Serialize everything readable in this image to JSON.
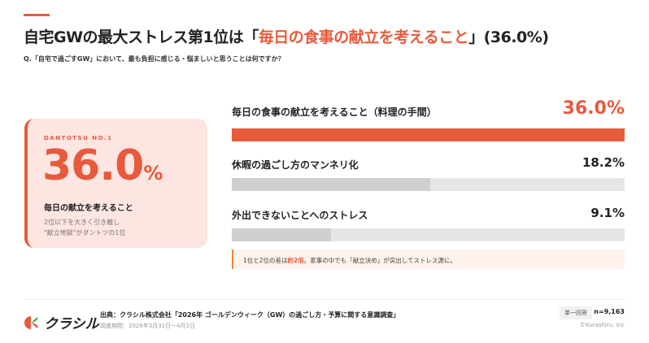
{
  "header": {
    "title_prefix": "自宅GWの最大ストレス第1位は「",
    "title_highlight": "毎日の食事の献立を考えること",
    "title_suffix": "」(36.0%)",
    "question": "Q.「自宅で過ごすGW」において、最も負担に感じる・悩ましいと思うことは何ですか？"
  },
  "card": {
    "tag": "DANTOTSU NO.1",
    "value": "36.0",
    "unit": "%",
    "label": "毎日の献立を考えること",
    "sub_line1": "2位以下を大きく引き離し",
    "sub_line2": "\"献立地獄\"がダントツの1位"
  },
  "chart_data": {
    "type": "bar",
    "orientation": "horizontal",
    "categories": [
      "毎日の食事の献立を考えること（料理の手間）",
      "休暇の過ごし方のマンネリ化",
      "外出できないことへのストレス"
    ],
    "values": [
      36.0,
      18.2,
      9.1
    ],
    "value_labels": [
      "36.0%",
      "18.2%",
      "9.1%"
    ],
    "xlim": [
      0,
      36.0
    ],
    "colors": [
      "#e85a3c",
      "#cfcfcf",
      "#cfcfcf"
    ],
    "track_color": "#e6e6e6"
  },
  "note": {
    "prefix": "1位と2位の差は",
    "emphasis": "約2倍",
    "suffix": "。家事の中でも「献立決め」が突出してストレス源に。"
  },
  "footer": {
    "logo_text": "クラシル",
    "source": "出典：クラシル株式会社「2026年 ゴールデンウィーク（GW）の過ごし方・予算に関する意識調査」",
    "period": "調査期間：2026年3月31日〜4月2日",
    "badge": "単一回答",
    "n": "n=9,163",
    "copyright": "©Kurashiru, inc"
  },
  "colors": {
    "accent": "#e85a3c",
    "card_bg": "#fde5e2",
    "logo_green": "#4caf50"
  }
}
